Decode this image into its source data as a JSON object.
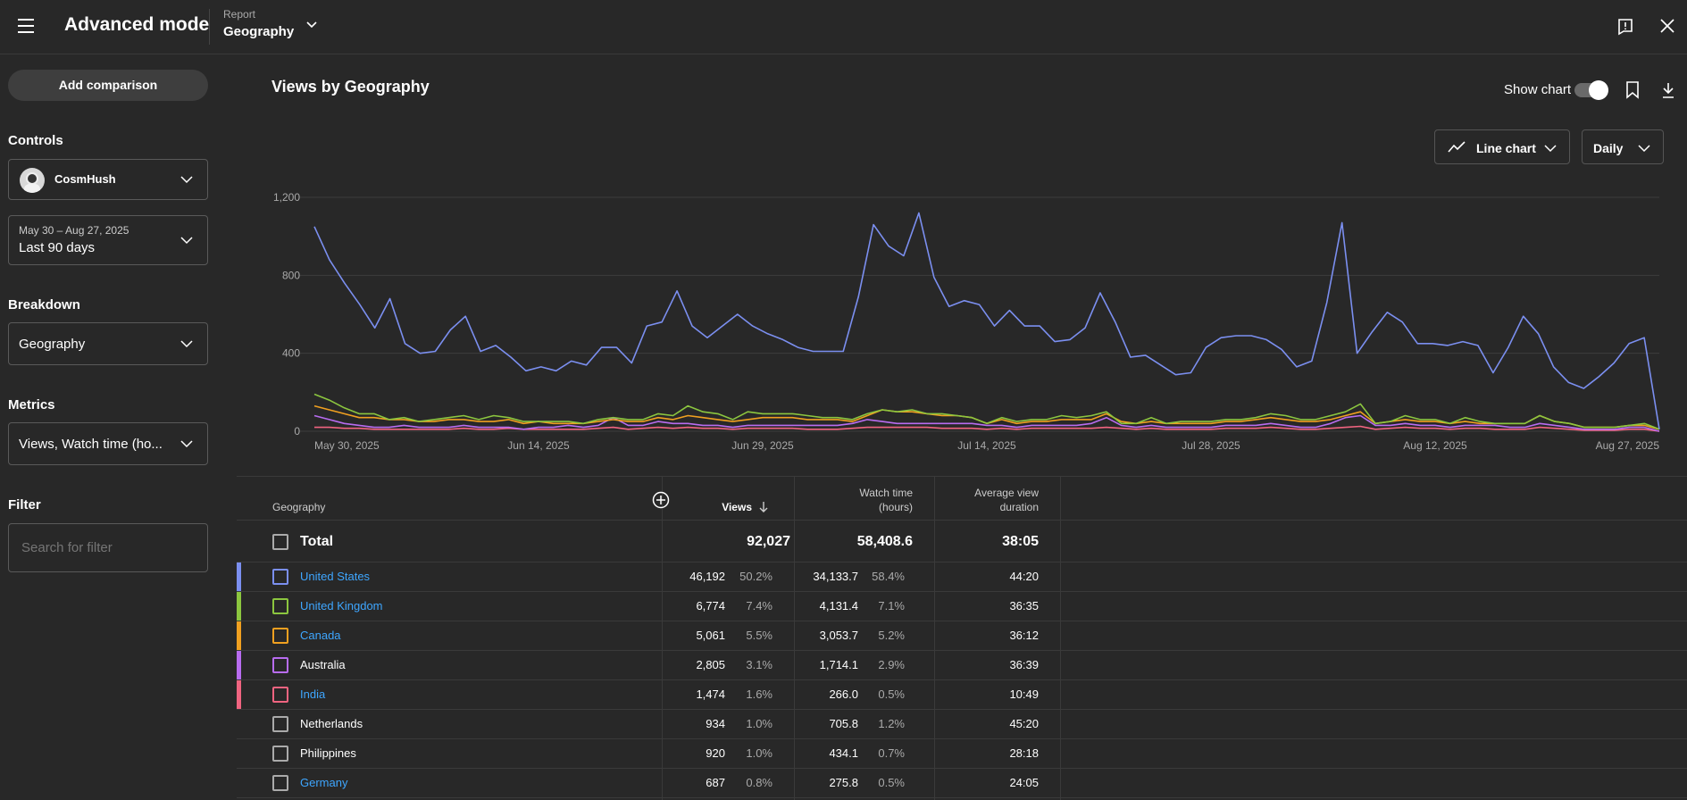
{
  "header": {
    "title": "Advanced mode",
    "report_label": "Report",
    "report_value": "Geography"
  },
  "sidebar": {
    "add_comparison": "Add comparison",
    "controls_heading": "Controls",
    "channel_name": "CosmHush",
    "date_range": "May 30 – Aug 27, 2025",
    "date_preset": "Last 90 days",
    "breakdown_heading": "Breakdown",
    "breakdown_value": "Geography",
    "metrics_heading": "Metrics",
    "metrics_value": "Views, Watch time (ho...",
    "filter_heading": "Filter",
    "filter_placeholder": "Search for filter"
  },
  "main": {
    "title": "Views by Geography",
    "show_chart_label": "Show chart",
    "show_chart_on": true,
    "chart_type_label": "Line chart",
    "granularity_label": "Daily"
  },
  "chart_data": {
    "type": "line",
    "x_start": "2025-05-30",
    "x_end": "2025-08-27",
    "x_tick_labels": [
      "May 30, 2025",
      "Jun 14, 2025",
      "Jun 29, 2025",
      "Jul 14, 2025",
      "Jul 28, 2025",
      "Aug 12, 2025",
      "Aug 27, 2025"
    ],
    "y_ticks": [
      0,
      400,
      800,
      1200
    ],
    "ylim": [
      0,
      1200
    ],
    "grid": true,
    "series": [
      {
        "name": "United States",
        "color": "#7b8ff0",
        "values": [
          1050,
          880,
          760,
          650,
          530,
          680,
          450,
          400,
          410,
          520,
          590,
          410,
          440,
          380,
          310,
          330,
          310,
          360,
          340,
          430,
          430,
          350,
          540,
          560,
          720,
          540,
          480,
          540,
          600,
          540,
          500,
          470,
          430,
          410,
          410,
          410,
          690,
          1060,
          950,
          900,
          1120,
          790,
          640,
          670,
          650,
          540,
          620,
          540,
          540,
          460,
          470,
          530,
          710,
          560,
          380,
          390,
          340,
          290,
          300,
          430,
          480,
          490,
          490,
          470,
          420,
          330,
          360,
          660,
          1070,
          400,
          510,
          610,
          560,
          450,
          450,
          440,
          460,
          440,
          300,
          430,
          590,
          500,
          330,
          250,
          220,
          280,
          350,
          450,
          480,
          10
        ]
      },
      {
        "name": "United Kingdom",
        "color": "#8cc63f",
        "values": [
          190,
          160,
          120,
          90,
          90,
          60,
          70,
          50,
          60,
          70,
          80,
          60,
          80,
          70,
          50,
          50,
          50,
          50,
          40,
          60,
          70,
          60,
          60,
          90,
          80,
          130,
          100,
          90,
          60,
          100,
          90,
          90,
          90,
          80,
          70,
          70,
          60,
          90,
          110,
          100,
          110,
          90,
          90,
          80,
          70,
          40,
          70,
          50,
          60,
          60,
          80,
          70,
          80,
          100,
          40,
          40,
          70,
          40,
          50,
          50,
          50,
          60,
          60,
          70,
          90,
          80,
          60,
          60,
          80,
          100,
          140,
          40,
          50,
          80,
          60,
          60,
          40,
          70,
          50,
          40,
          40,
          40,
          80,
          50,
          40,
          20,
          20,
          20,
          30,
          40,
          10
        ]
      },
      {
        "name": "Canada",
        "color": "#f0a020",
        "values": [
          130,
          110,
          90,
          70,
          70,
          60,
          60,
          50,
          50,
          60,
          60,
          50,
          50,
          60,
          40,
          50,
          40,
          40,
          40,
          50,
          60,
          50,
          50,
          70,
          60,
          80,
          70,
          60,
          50,
          60,
          70,
          70,
          70,
          60,
          60,
          60,
          50,
          80,
          110,
          100,
          100,
          90,
          80,
          80,
          70,
          40,
          60,
          40,
          50,
          50,
          60,
          60,
          60,
          90,
          50,
          40,
          50,
          40,
          40,
          40,
          40,
          50,
          50,
          60,
          70,
          60,
          50,
          50,
          60,
          80,
          100,
          40,
          50,
          60,
          50,
          50,
          40,
          50,
          40,
          40,
          40,
          40,
          80,
          50,
          40,
          20,
          20,
          20,
          30,
          30,
          10
        ]
      },
      {
        "name": "Australia",
        "color": "#b86cf0",
        "values": [
          80,
          60,
          40,
          30,
          20,
          20,
          30,
          20,
          20,
          20,
          30,
          20,
          20,
          20,
          10,
          20,
          20,
          30,
          20,
          30,
          70,
          30,
          30,
          50,
          40,
          40,
          30,
          30,
          20,
          30,
          30,
          30,
          30,
          30,
          30,
          30,
          40,
          60,
          50,
          40,
          40,
          40,
          40,
          40,
          40,
          30,
          30,
          20,
          30,
          30,
          30,
          30,
          40,
          70,
          30,
          20,
          30,
          20,
          20,
          20,
          20,
          30,
          30,
          30,
          40,
          30,
          20,
          20,
          40,
          70,
          80,
          30,
          30,
          40,
          30,
          30,
          20,
          30,
          30,
          30,
          20,
          20,
          40,
          30,
          20,
          10,
          10,
          10,
          20,
          20,
          0
        ]
      },
      {
        "name": "India",
        "color": "#f06480",
        "values": [
          20,
          20,
          15,
          15,
          10,
          10,
          10,
          10,
          10,
          10,
          15,
          10,
          10,
          15,
          10,
          10,
          10,
          10,
          10,
          15,
          20,
          10,
          15,
          20,
          15,
          20,
          15,
          15,
          10,
          15,
          15,
          15,
          15,
          10,
          10,
          10,
          15,
          20,
          20,
          20,
          20,
          20,
          15,
          15,
          15,
          10,
          15,
          10,
          15,
          15,
          15,
          15,
          15,
          20,
          15,
          10,
          15,
          10,
          10,
          10,
          10,
          15,
          15,
          15,
          20,
          15,
          10,
          10,
          15,
          20,
          25,
          10,
          15,
          20,
          15,
          15,
          10,
          15,
          15,
          10,
          10,
          10,
          20,
          15,
          10,
          5,
          5,
          5,
          10,
          10,
          0
        ]
      }
    ]
  },
  "table": {
    "headers": {
      "geography": "Geography",
      "views": "Views",
      "watch_time_1": "Watch time",
      "watch_time_2": "(hours)",
      "avg_1": "Average view",
      "avg_2": "duration"
    },
    "total": {
      "label": "Total",
      "views": "92,027",
      "watch": "58,408.6",
      "avg": "38:05"
    },
    "rows": [
      {
        "name": "United States",
        "views": "46,192",
        "views_pct": "50.2%",
        "watch": "34,133.7",
        "watch_pct": "58.4%",
        "avg": "44:20",
        "color": "#7b8ff0",
        "link": true
      },
      {
        "name": "United Kingdom",
        "views": "6,774",
        "views_pct": "7.4%",
        "watch": "4,131.4",
        "watch_pct": "7.1%",
        "avg": "36:35",
        "color": "#8cc63f",
        "link": true
      },
      {
        "name": "Canada",
        "views": "5,061",
        "views_pct": "5.5%",
        "watch": "3,053.7",
        "watch_pct": "5.2%",
        "avg": "36:12",
        "color": "#f0a020",
        "link": true
      },
      {
        "name": "Australia",
        "views": "2,805",
        "views_pct": "3.1%",
        "watch": "1,714.1",
        "watch_pct": "2.9%",
        "avg": "36:39",
        "color": "#b86cf0",
        "link": false
      },
      {
        "name": "India",
        "views": "1,474",
        "views_pct": "1.6%",
        "watch": "266.0",
        "watch_pct": "0.5%",
        "avg": "10:49",
        "color": "#f06480",
        "link": true
      },
      {
        "name": "Netherlands",
        "views": "934",
        "views_pct": "1.0%",
        "watch": "705.8",
        "watch_pct": "1.2%",
        "avg": "45:20",
        "color": "",
        "link": false
      },
      {
        "name": "Philippines",
        "views": "920",
        "views_pct": "1.0%",
        "watch": "434.1",
        "watch_pct": "0.7%",
        "avg": "28:18",
        "color": "",
        "link": false
      },
      {
        "name": "Germany",
        "views": "687",
        "views_pct": "0.8%",
        "watch": "275.8",
        "watch_pct": "0.5%",
        "avg": "24:05",
        "color": "",
        "link": true
      }
    ]
  }
}
